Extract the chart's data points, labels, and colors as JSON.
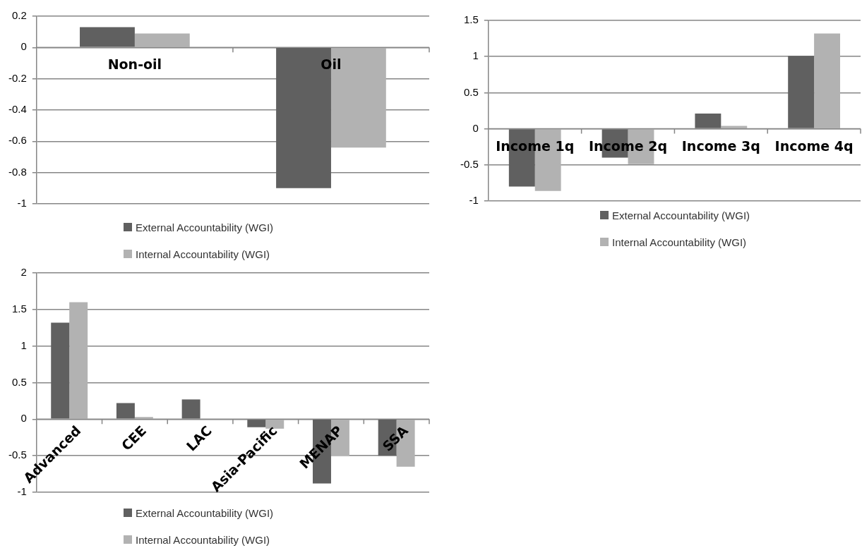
{
  "chart_data": [
    {
      "type": "bar",
      "categories": [
        "Non-oil",
        "Oil"
      ],
      "series": [
        {
          "name": "External Accountability (WGI)",
          "color": "#606060",
          "values": [
            0.13,
            -0.9
          ]
        },
        {
          "name": "Internal Accountability (WGI)",
          "color": "#b2b2b2",
          "values": [
            0.09,
            -0.64
          ]
        }
      ],
      "ylim": [
        -1,
        0.2
      ],
      "yticks": [
        -1,
        -0.8,
        -0.6,
        -0.4,
        -0.2,
        0,
        0.2
      ],
      "grid": "y",
      "legend": "bottom"
    },
    {
      "type": "bar",
      "categories": [
        "Income 1q",
        "Income 2q",
        "Income 3q",
        "Income 4q"
      ],
      "series": [
        {
          "name": "External Accountability (WGI)",
          "color": "#606060",
          "values": [
            -0.8,
            -0.4,
            0.21,
            1.01
          ]
        },
        {
          "name": "Internal Accountability (WGI)",
          "color": "#b2b2b2",
          "values": [
            -0.86,
            -0.49,
            0.04,
            1.32
          ]
        }
      ],
      "ylim": [
        -1,
        1.5
      ],
      "yticks": [
        -1,
        -0.5,
        0,
        0.5,
        1,
        1.5
      ],
      "grid": "y",
      "legend": "bottom"
    },
    {
      "type": "bar",
      "categories": [
        "Advanced",
        "CEE",
        "LAC",
        "Asia-Pacific",
        "MENAP",
        "SSA"
      ],
      "series": [
        {
          "name": "External Accountability (WGI)",
          "color": "#606060",
          "values": [
            1.32,
            0.22,
            0.27,
            -0.11,
            -0.88,
            -0.5
          ]
        },
        {
          "name": "Internal Accountability (WGI)",
          "color": "#b2b2b2",
          "values": [
            1.6,
            0.03,
            0,
            -0.13,
            -0.5,
            -0.65
          ]
        }
      ],
      "ylim": [
        -1,
        2
      ],
      "yticks": [
        -1,
        -0.5,
        0,
        0.5,
        1,
        1.5,
        2
      ],
      "grid": "y",
      "legend": "bottom"
    }
  ]
}
